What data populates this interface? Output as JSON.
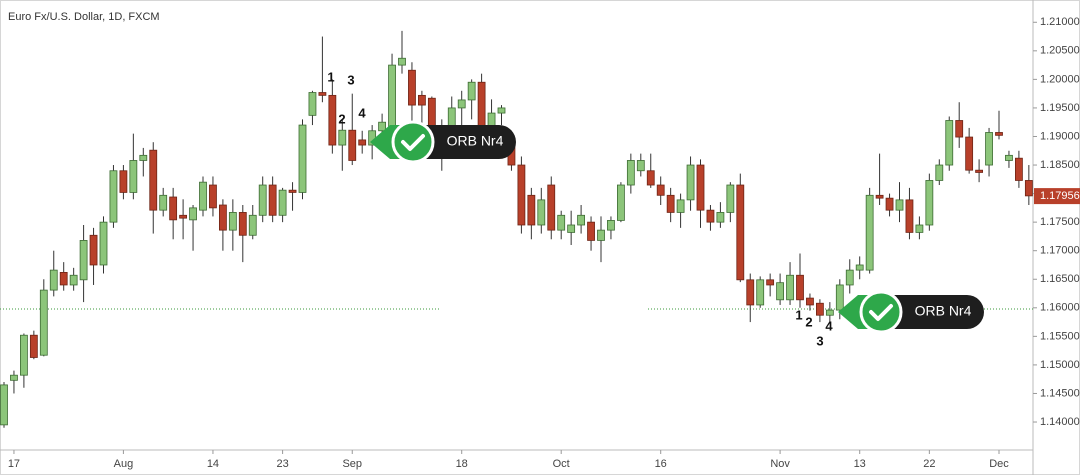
{
  "chart_data": {
    "type": "candlestick",
    "title": "Euro Fx/U.S. Dollar, 1D, FXCM",
    "x": [
      null,
      "17",
      null,
      null,
      null,
      null,
      null,
      null,
      null,
      null,
      null,
      null,
      "Aug",
      null,
      null,
      null,
      null,
      null,
      null,
      null,
      null,
      "14",
      null,
      null,
      null,
      null,
      null,
      null,
      "23",
      null,
      null,
      null,
      null,
      null,
      null,
      "Sep",
      null,
      null,
      null,
      null,
      null,
      null,
      null,
      null,
      null,
      null,
      "18",
      null,
      null,
      null,
      null,
      null,
      null,
      null,
      null,
      null,
      "Oct",
      null,
      null,
      null,
      null,
      null,
      null,
      null,
      null,
      null,
      "16",
      null,
      null,
      null,
      null,
      null,
      null,
      null,
      null,
      null,
      null,
      null,
      "Nov",
      null,
      null,
      null,
      null,
      null,
      null,
      null,
      "13",
      null,
      null,
      null,
      null,
      null,
      null,
      "22",
      null,
      null,
      null,
      null,
      null,
      null,
      "Dec",
      null,
      null,
      null
    ],
    "open": [
      1.1395,
      1.1473,
      1.1482,
      1.1552,
      1.1517,
      1.1631,
      1.1662,
      1.164,
      1.1649,
      1.1727,
      1.1675,
      1.175,
      1.184,
      1.1802,
      1.1858,
      1.1876,
      1.1771,
      1.1794,
      1.1762,
      1.1754,
      1.1771,
      1.1815,
      1.178,
      1.1736,
      1.1767,
      1.1727,
      1.1762,
      1.1815,
      1.1762,
      1.1806,
      1.1802,
      1.1937,
      1.1977,
      1.1972,
      1.1885,
      1.1911,
      1.1894,
      1.1885,
      1.191,
      1.19,
      1.2025,
      1.2016,
      1.1972,
      1.1967,
      1.1915,
      1.1911,
      1.195,
      1.1964,
      1.1995,
      1.1911,
      1.1941,
      1.1897,
      1.185,
      1.1797,
      1.1745,
      1.1815,
      1.1736,
      1.1732,
      1.1745,
      1.175,
      1.1718,
      1.1736,
      1.1753,
      1.1815,
      1.184,
      1.184,
      1.1815,
      1.1797,
      1.1767,
      1.1789,
      1.185,
      1.1771,
      1.175,
      1.1767,
      1.1815,
      1.1649,
      1.1605,
      1.1649,
      1.1614,
      1.1614,
      1.1657,
      1.1617,
      1.1608,
      1.1587,
      1.1596,
      1.164,
      1.1666,
      1.1666,
      1.1797,
      1.1792,
      1.1771,
      1.1789,
      1.1732,
      1.1745,
      1.1823,
      1.185,
      1.1928,
      1.1899,
      1.1841,
      1.185,
      1.1907,
      1.1858,
      1.1862,
      1.1823
    ],
    "high": [
      1.147,
      1.149,
      1.1555,
      1.156,
      1.165,
      1.17,
      1.168,
      1.167,
      1.1745,
      1.174,
      1.176,
      1.185,
      1.185,
      1.1905,
      1.188,
      1.189,
      1.181,
      1.181,
      1.179,
      1.178,
      1.183,
      1.183,
      1.179,
      1.179,
      1.178,
      1.178,
      1.183,
      1.183,
      1.181,
      1.182,
      1.193,
      1.198,
      1.2075,
      1.2,
      1.193,
      1.1975,
      1.191,
      1.192,
      1.194,
      1.2045,
      1.2085,
      1.203,
      1.198,
      1.197,
      1.193,
      1.197,
      1.198,
      1.2,
      1.201,
      1.1965,
      1.1955,
      1.191,
      1.1865,
      1.181,
      1.181,
      1.183,
      1.177,
      1.177,
      1.178,
      1.176,
      1.176,
      1.176,
      1.182,
      1.187,
      1.187,
      1.187,
      1.183,
      1.181,
      1.18,
      1.1865,
      1.186,
      1.178,
      1.1785,
      1.182,
      1.1835,
      1.166,
      1.1655,
      1.166,
      1.166,
      1.168,
      1.1695,
      1.1625,
      1.1615,
      1.161,
      1.165,
      1.1685,
      1.169,
      1.181,
      1.187,
      1.18,
      1.182,
      1.181,
      1.176,
      1.1835,
      1.186,
      1.1935,
      1.196,
      1.1915,
      1.186,
      1.1915,
      1.1945,
      1.1875,
      1.1875,
      1.185
    ],
    "low": [
      1.139,
      1.145,
      1.146,
      1.151,
      1.1515,
      1.162,
      1.163,
      1.163,
      1.161,
      1.164,
      1.166,
      1.174,
      1.179,
      1.179,
      1.183,
      1.173,
      1.176,
      1.172,
      1.172,
      1.17,
      1.176,
      1.176,
      1.17,
      1.17,
      1.168,
      1.172,
      1.175,
      1.175,
      1.175,
      1.177,
      1.179,
      1.192,
      1.196,
      1.187,
      1.184,
      1.185,
      1.187,
      1.186,
      1.188,
      1.188,
      1.201,
      1.192,
      1.189,
      1.188,
      1.184,
      1.187,
      1.192,
      1.193,
      1.189,
      1.188,
      1.192,
      1.184,
      1.173,
      1.172,
      1.173,
      1.172,
      1.172,
      1.171,
      1.173,
      1.17,
      1.168,
      1.172,
      1.175,
      1.18,
      1.183,
      1.181,
      1.178,
      1.175,
      1.174,
      1.177,
      1.174,
      1.1735,
      1.174,
      1.175,
      1.1645,
      1.1575,
      1.16,
      1.162,
      1.1605,
      1.1605,
      1.16,
      1.1595,
      1.1575,
      1.1575,
      1.158,
      1.1625,
      1.165,
      1.166,
      1.178,
      1.176,
      1.175,
      1.172,
      1.172,
      1.1735,
      1.1815,
      1.184,
      1.188,
      1.1835,
      1.182,
      1.183,
      1.1895,
      1.1845,
      1.181,
      1.178
    ],
    "close": [
      1.1465,
      1.1482,
      1.1552,
      1.1513,
      1.1631,
      1.1666,
      1.164,
      1.1657,
      1.1718,
      1.1675,
      1.175,
      1.184,
      1.1802,
      1.1858,
      1.1867,
      1.1771,
      1.1797,
      1.1754,
      1.1757,
      1.1775,
      1.182,
      1.1775,
      1.1736,
      1.1767,
      1.1727,
      1.1762,
      1.1815,
      1.1762,
      1.1806,
      1.1802,
      1.192,
      1.1977,
      1.1972,
      1.1885,
      1.1911,
      1.1858,
      1.1885,
      1.191,
      1.1925,
      1.2025,
      1.2037,
      1.1955,
      1.1955,
      1.1915,
      1.1894,
      1.195,
      1.1964,
      1.1995,
      1.1911,
      1.1941,
      1.195,
      1.185,
      1.1745,
      1.1745,
      1.1789,
      1.1736,
      1.1762,
      1.1745,
      1.1762,
      1.1718,
      1.1736,
      1.1753,
      1.1815,
      1.1858,
      1.1858,
      1.1815,
      1.1797,
      1.1767,
      1.1789,
      1.185,
      1.1771,
      1.175,
      1.1767,
      1.1815,
      1.1649,
      1.1605,
      1.1649,
      1.164,
      1.1644,
      1.1657,
      1.1614,
      1.1605,
      1.1587,
      1.1596,
      1.164,
      1.1666,
      1.1675,
      1.1797,
      1.1792,
      1.1771,
      1.1789,
      1.1732,
      1.1745,
      1.1823,
      1.185,
      1.1928,
      1.1899,
      1.1841,
      1.1837,
      1.1907,
      1.1902,
      1.1867,
      1.1823,
      1.1796
    ],
    "up_color": "#8cc57a",
    "down_color": "#b8402a",
    "ylim": [
      1.1351,
      1.2139
    ],
    "yticks": [
      {
        "value": 1.14,
        "label": "1.14000"
      },
      {
        "value": 1.145,
        "label": "1.14500"
      },
      {
        "value": 1.15,
        "label": "1.15000"
      },
      {
        "value": 1.155,
        "label": "1.15500"
      },
      {
        "value": 1.16,
        "label": "1.16000"
      },
      {
        "value": 1.165,
        "label": "1.16500"
      },
      {
        "value": 1.17,
        "label": "1.17000"
      },
      {
        "value": 1.175,
        "label": "1.17500"
      },
      {
        "value": 1.18,
        "label": "1.18000"
      },
      {
        "value": 1.185,
        "label": "1.18500"
      },
      {
        "value": 1.19,
        "label": "1.19000"
      },
      {
        "value": 1.195,
        "label": "1.19500"
      },
      {
        "value": 1.2,
        "label": "1.20000"
      },
      {
        "value": 1.205,
        "label": "1.20500"
      },
      {
        "value": 1.21,
        "label": "1.21000"
      }
    ],
    "last_price": {
      "value": 1.17956,
      "label": "1.17956"
    },
    "annotations": [
      "1",
      "2",
      "3",
      "4",
      "ORB Nr4",
      "1",
      "2",
      "3",
      "4",
      "ORB Nr4"
    ]
  }
}
